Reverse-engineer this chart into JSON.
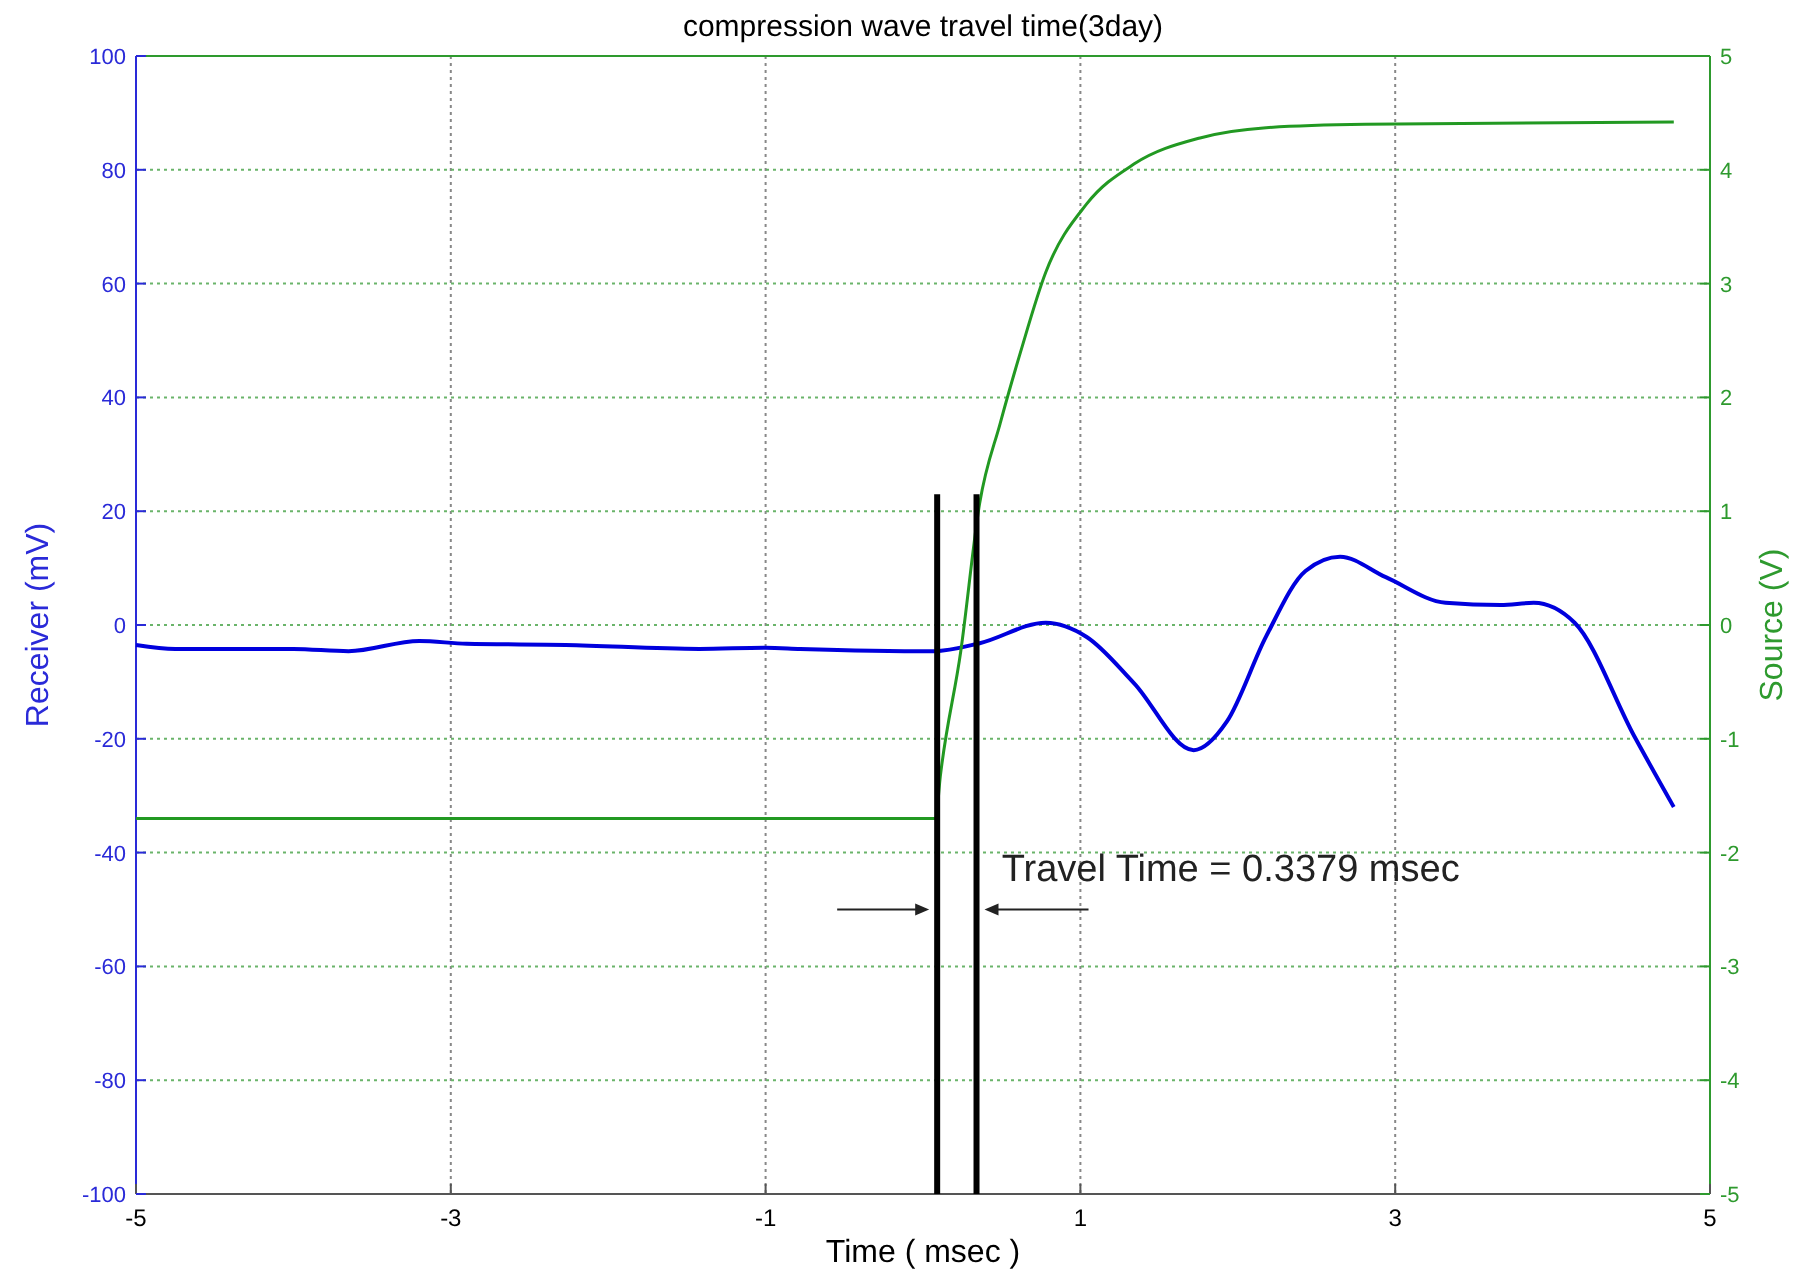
{
  "chart_data": {
    "type": "line",
    "title": "compression wave travel time(3day)",
    "xlabel": "Time ( msec )",
    "ylabel": "Receiver (mV)",
    "y2label": "Source (V)",
    "xlim": [
      -5,
      5
    ],
    "xticks": [
      -5,
      -3,
      -1,
      1,
      3,
      5
    ],
    "ylim": [
      -100,
      100
    ],
    "yticks": [
      -100,
      -80,
      -60,
      -40,
      -20,
      0,
      20,
      40,
      60,
      80,
      100
    ],
    "y2lim": [
      -5,
      5
    ],
    "y2ticks": [
      -5,
      -4,
      -3,
      -2,
      -1,
      0,
      1,
      2,
      3,
      4,
      5
    ],
    "grid": true,
    "series": [
      {
        "color": "#0000dd",
        "x": [
          -5,
          -4.75,
          -4.0,
          -3.65,
          -3.2,
          -2.9,
          -2.27,
          -1.42,
          -1.0,
          -0.78,
          0.07,
          0.36,
          0.78,
          1.04,
          1.34,
          1.72,
          1.93,
          2.18,
          2.43,
          2.65,
          2.94,
          3.32,
          3.67,
          3.88,
          4.14,
          4.52,
          4.77
        ],
        "values": [
          -3.5,
          -4.2,
          -4.2,
          -4.6,
          -2.8,
          -3.3,
          -3.5,
          -4.2,
          -4.0,
          -4.2,
          -4.6,
          -3.2,
          0.4,
          -2.1,
          -10.2,
          -22,
          -17,
          -2,
          9.5,
          12,
          8.4,
          3.9,
          3.5,
          3.9,
          0.4,
          -19.6,
          -32
        ]
      },
      {
        "color": "#229922",
        "axis": "y2",
        "x": [
          -5,
          0.08,
          0.11,
          0.24,
          0.36,
          0.49,
          0.62,
          0.78,
          1.04,
          1.34,
          1.76,
          2.18,
          2.81,
          4.77
        ],
        "values": [
          -1.7,
          -1.7,
          -1.33,
          -0.23,
          1.07,
          1.77,
          2.4,
          3.1,
          3.7,
          4.05,
          4.28,
          4.37,
          4.4,
          4.42
        ]
      }
    ],
    "ref_lines": [
      {
        "axis": "x",
        "value": 0.09,
        "color": "#000000"
      },
      {
        "axis": "x",
        "value": 0.34,
        "color": "#000000"
      }
    ],
    "annotations": [
      "Travel Time = 0.3379 msec"
    ]
  }
}
